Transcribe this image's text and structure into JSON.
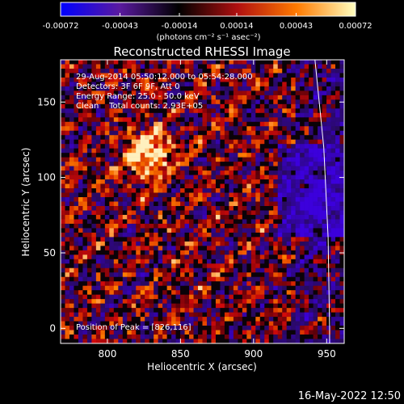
{
  "chart_data": {
    "type": "heatmap",
    "title": "Reconstructed RHESSI Image",
    "xlabel": "Heliocentric X (arcsec)",
    "ylabel": "Heliocentric Y (arcsec)",
    "xlim": [
      768,
      962
    ],
    "ylim": [
      -10,
      178
    ],
    "x_ticks": [
      800,
      850,
      900,
      950
    ],
    "y_ticks": [
      0,
      50,
      100,
      150
    ],
    "colorbar": {
      "ticks": [
        "-0.00072",
        "-0.00043",
        "-0.00014",
        "0.00014",
        "0.00043",
        "0.00072"
      ],
      "range": [
        -0.00072,
        0.00072
      ],
      "unit_label": "(photons cm⁻² s⁻¹ asec⁻²)",
      "colors": [
        "#0000ff",
        "#5a1aa0",
        "#000000",
        "#b01010",
        "#ff7a00",
        "#ffffc0"
      ]
    },
    "annotations": [
      "29-Aug-2014 05:50:12.000 to 05:54:28.000",
      "Detectors: 3F 6F 9F, Att 0",
      "Energy Range: 25.0 - 50.0 keV",
      "Clean    Total counts: 2.93E+05"
    ],
    "peak_label": "Position of Peak = [826,116]",
    "peak": [
      826,
      116
    ],
    "limb_curve": [
      [
        942,
        178
      ],
      [
        948,
        120
      ],
      [
        951,
        60
      ],
      [
        952,
        0
      ],
      [
        952,
        -10
      ]
    ]
  },
  "footer": {
    "timestamp": "16-May-2022 12:50"
  }
}
